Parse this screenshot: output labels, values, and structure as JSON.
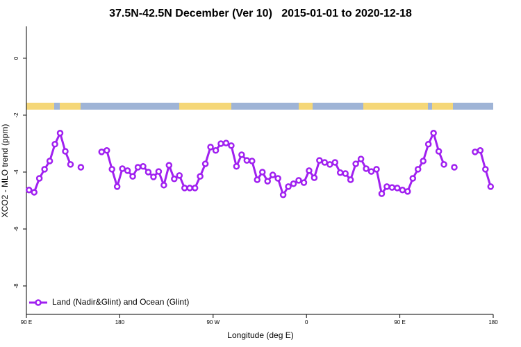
{
  "chart_data": {
    "type": "line",
    "title": "37.5N-42.5N December (Ver 10)   2015-01-01 to 2020-12-18",
    "xlabel": "Longitude (deg E)",
    "ylabel": "XCO2 - MLO trend (ppm)",
    "xlim": [
      90,
      540
    ],
    "ylim": [
      -9,
      1.12
    ],
    "xticks": [
      {
        "value": 90,
        "label": "90 E"
      },
      {
        "value": 180,
        "label": "180"
      },
      {
        "value": 270,
        "label": "90 W"
      },
      {
        "value": 360,
        "label": "0"
      },
      {
        "value": 450,
        "label": "90 E"
      },
      {
        "value": 540,
        "label": "180"
      }
    ],
    "yticks": [
      0,
      -2,
      -4,
      -6,
      -8
    ],
    "legend": "bottom-left",
    "x": [
      92.5,
      97.5,
      102.5,
      107.5,
      112.5,
      117.5,
      122.5,
      127.5,
      132.5,
      137.5,
      142.5,
      147.5,
      152.5,
      157.5,
      162.5,
      167.5,
      172.5,
      177.5,
      182.5,
      187.5,
      192.5,
      197.5,
      202.5,
      207.5,
      212.5,
      217.5,
      222.5,
      227.5,
      232.5,
      237.5,
      242.5,
      247.5,
      252.5,
      257.5,
      262.5,
      267.5,
      272.5,
      277.5,
      282.5,
      287.5,
      292.5,
      297.5,
      302.5,
      307.5,
      312.5,
      317.5,
      322.5,
      327.5,
      332.5,
      337.5,
      342.5,
      347.5,
      352.5,
      357.5,
      362.5,
      367.5,
      372.5,
      377.5,
      382.5,
      387.5,
      392.5,
      397.5,
      402.5,
      407.5,
      412.5,
      417.5,
      422.5,
      427.5,
      432.5,
      437.5,
      442.5,
      447.5,
      452.5,
      457.5,
      462.5,
      467.5,
      472.5,
      477.5,
      482.5,
      487.5,
      492.5,
      497.5,
      502.5,
      507.5,
      512.5,
      517.5,
      522.5,
      527.5,
      532.5,
      537.5
    ],
    "series": [
      {
        "name": "Land (Nadir&Glint) and Ocean (Glint)",
        "color": "#a020f0",
        "values": [
          -4.63,
          -4.71,
          -4.22,
          -3.9,
          -3.61,
          -3.02,
          -2.63,
          -3.27,
          -3.73,
          null,
          -3.83,
          null,
          null,
          null,
          -3.29,
          -3.24,
          -3.9,
          -4.51,
          -3.88,
          -3.95,
          -4.15,
          -3.83,
          -3.8,
          -4.0,
          -4.17,
          -3.98,
          -4.46,
          -3.76,
          -4.24,
          -4.12,
          -4.56,
          -4.56,
          -4.56,
          -4.15,
          -3.71,
          -3.12,
          -3.24,
          -3.0,
          -2.98,
          -3.07,
          -3.8,
          -3.39,
          -3.59,
          -3.61,
          -4.27,
          -4.0,
          -4.32,
          -4.1,
          -4.22,
          -4.8,
          -4.51,
          -4.41,
          -4.29,
          -4.37,
          -3.95,
          -4.2,
          -3.59,
          -3.66,
          -3.73,
          -3.66,
          -4.02,
          -4.05,
          -4.27,
          -3.71,
          -3.54,
          -3.88,
          -3.98,
          -3.9,
          -4.76,
          -4.51,
          -4.54,
          -4.56,
          -4.63,
          -4.68,
          -4.22,
          -3.9,
          -3.61,
          -3.02,
          -2.63,
          -3.27,
          -3.73,
          null,
          -3.83,
          null,
          null,
          null,
          -3.29,
          -3.24,
          -3.9,
          -4.51
        ]
      }
    ]
  }
}
